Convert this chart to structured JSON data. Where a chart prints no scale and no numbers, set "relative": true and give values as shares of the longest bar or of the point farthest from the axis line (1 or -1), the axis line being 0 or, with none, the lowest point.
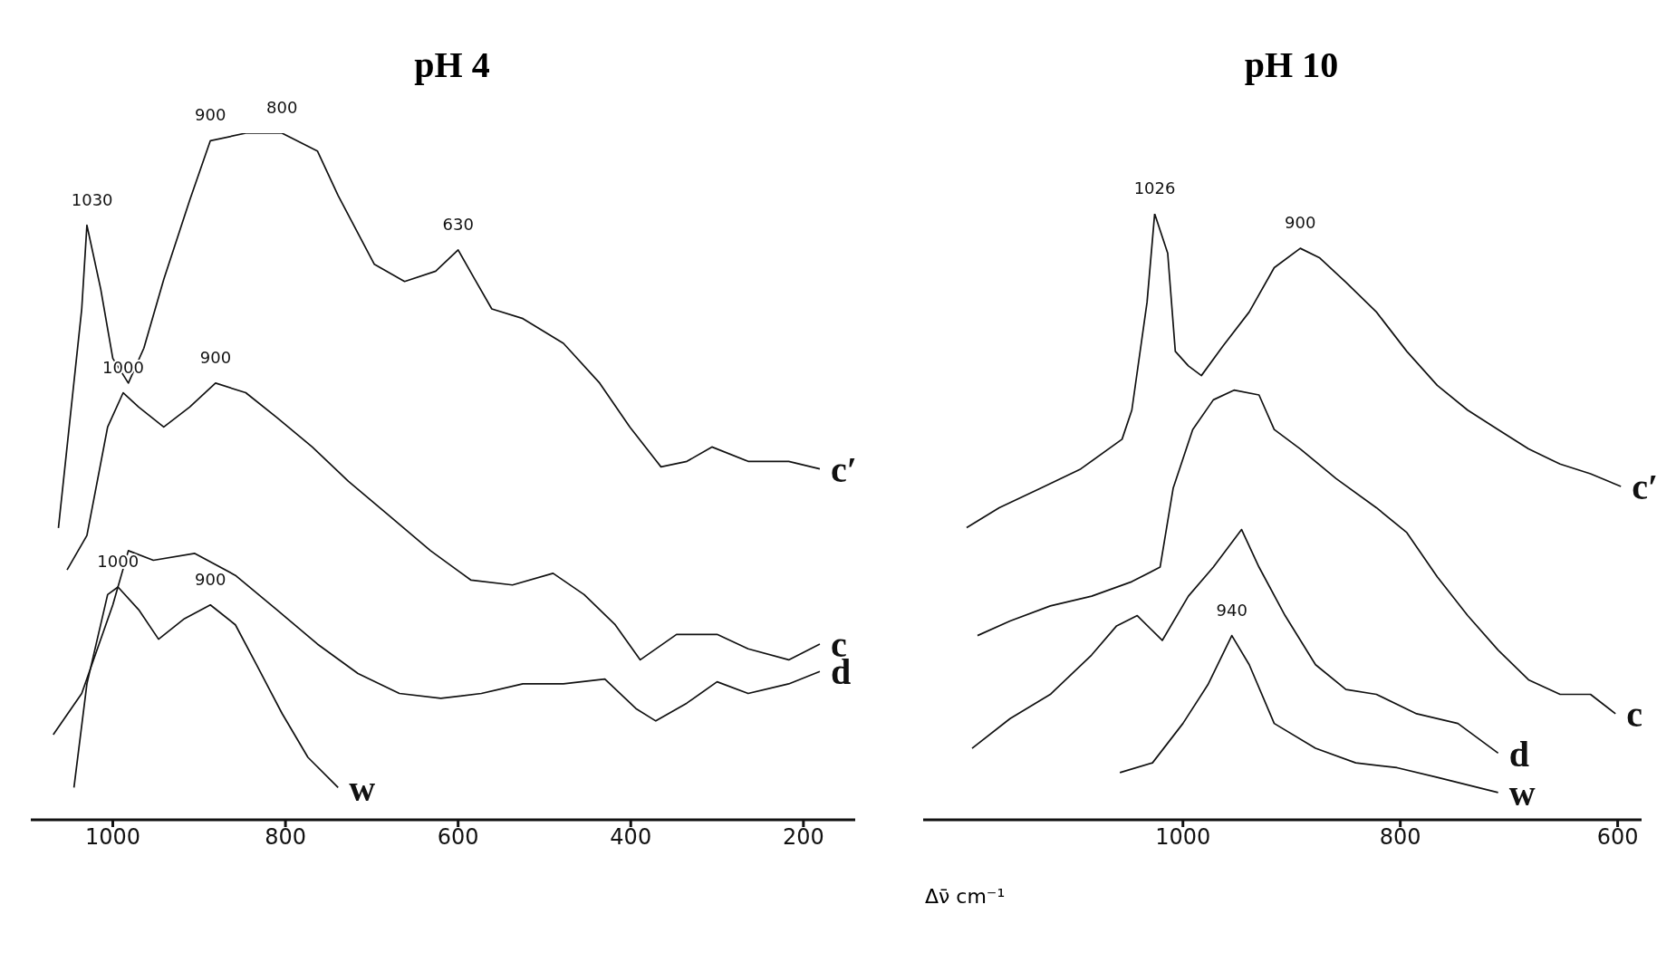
{
  "chart_data": [
    {
      "type": "line",
      "title": "pH 4",
      "relative": true,
      "xlim": [
        1095,
        140
      ],
      "xticks": [
        1000,
        800,
        600,
        400,
        200
      ],
      "series": [
        {
          "name": "c′",
          "color": "#111111",
          "x": [
            1063,
            1036,
            1030,
            1014,
            1000,
            982,
            964,
            941,
            911,
            887,
            846,
            804,
            763,
            739,
            697,
            662,
            626,
            600,
            582,
            561,
            525,
            478,
            436,
            401,
            365,
            335,
            306,
            264,
            217,
            181
          ],
          "values": [
            0.425,
            0.744,
            0.866,
            0.773,
            0.672,
            0.636,
            0.687,
            0.787,
            0.902,
            0.989,
            1,
            1,
            0.974,
            0.909,
            0.809,
            0.784,
            0.799,
            0.83,
            0.79,
            0.744,
            0.73,
            0.694,
            0.636,
            0.572,
            0.514,
            0.522,
            0.543,
            0.522,
            0.522,
            0.511
          ]
        },
        {
          "name": "c",
          "color": "#111111",
          "x": [
            1053,
            1030,
            1006,
            988,
            970,
            941,
            911,
            881,
            846,
            810,
            769,
            727,
            680,
            632,
            585,
            537,
            490,
            454,
            418,
            389,
            347,
            300,
            264,
            217,
            181
          ],
          "values": [
            0.364,
            0.414,
            0.572,
            0.622,
            0.601,
            0.572,
            0.601,
            0.636,
            0.622,
            0.586,
            0.543,
            0.493,
            0.443,
            0.392,
            0.349,
            0.342,
            0.359,
            0.328,
            0.284,
            0.233,
            0.27,
            0.27,
            0.249,
            0.233,
            0.256
          ]
        },
        {
          "name": "d",
          "color": "#111111",
          "x": [
            1069,
            1036,
            1000,
            982,
            953,
            905,
            858,
            810,
            763,
            716,
            668,
            620,
            573,
            525,
            478,
            430,
            394,
            371,
            335,
            300,
            264,
            217,
            181
          ],
          "values": [
            0.124,
            0.184,
            0.313,
            0.392,
            0.378,
            0.388,
            0.356,
            0.306,
            0.256,
            0.213,
            0.184,
            0.177,
            0.184,
            0.198,
            0.198,
            0.205,
            0.162,
            0.144,
            0.17,
            0.201,
            0.184,
            0.198,
            0.216
          ]
        },
        {
          "name": "w",
          "color": "#111111",
          "x": [
            1045,
            1030,
            1006,
            994,
            970,
            947,
            917,
            887,
            858,
            834,
            804,
            774,
            739
          ],
          "values": [
            0.047,
            0.198,
            0.328,
            0.339,
            0.306,
            0.263,
            0.293,
            0.313,
            0.284,
            0.227,
            0.155,
            0.091,
            0.047
          ]
        }
      ],
      "annotations": [
        {
          "text": "1030",
          "x": 1024,
          "y": 0.866
        },
        {
          "text": "900",
          "x": 887,
          "y": 0.989
        },
        {
          "text": "800",
          "x": 804,
          "y": 1
        },
        {
          "text": "630",
          "x": 600,
          "y": 0.83
        },
        {
          "text": "900",
          "x": 881,
          "y": 0.636
        },
        {
          "text": "1000",
          "x": 988,
          "y": 0.622
        },
        {
          "text": "1000",
          "x": 994,
          "y": 0.339
        },
        {
          "text": "900",
          "x": 887,
          "y": 0.313
        }
      ]
    },
    {
      "type": "line",
      "title": "pH 10",
      "xlabel": "Δν̄ cm⁻¹",
      "relative": true,
      "xlim": [
        1239,
        578
      ],
      "xticks": [
        1000,
        800,
        600
      ],
      "series": [
        {
          "name": "c′",
          "color": "#111111",
          "x": [
            1199,
            1169,
            1131,
            1094,
            1056,
            1047,
            1033,
            1026,
            1014,
            1007,
            995,
            983,
            963,
            939,
            916,
            892,
            874,
            850,
            822,
            794,
            766,
            738,
            710,
            682,
            653,
            625,
            597
          ],
          "values": [
            0.482,
            0.515,
            0.547,
            0.579,
            0.628,
            0.676,
            0.854,
            1,
            0.935,
            0.773,
            0.749,
            0.733,
            0.782,
            0.838,
            0.911,
            0.943,
            0.927,
            0.887,
            0.838,
            0.773,
            0.717,
            0.676,
            0.644,
            0.612,
            0.587,
            0.571,
            0.55
          ]
        },
        {
          "name": "c",
          "color": "#111111",
          "x": [
            1189,
            1159,
            1122,
            1084,
            1047,
            1021,
            1009,
            991,
            972,
            953,
            930,
            916,
            892,
            859,
            822,
            794,
            766,
            738,
            710,
            682,
            653,
            625,
            602
          ],
          "values": [
            0.304,
            0.328,
            0.353,
            0.369,
            0.393,
            0.417,
            0.547,
            0.644,
            0.693,
            0.709,
            0.701,
            0.644,
            0.612,
            0.563,
            0.515,
            0.474,
            0.401,
            0.337,
            0.28,
            0.231,
            0.207,
            0.207,
            0.175
          ]
        },
        {
          "name": "d",
          "color": "#111111",
          "x": [
            1194,
            1159,
            1122,
            1084,
            1061,
            1042,
            1019,
            995,
            972,
            946,
            930,
            906,
            878,
            850,
            822,
            785,
            747,
            710
          ],
          "values": [
            0.118,
            0.167,
            0.207,
            0.272,
            0.32,
            0.337,
            0.296,
            0.369,
            0.417,
            0.479,
            0.417,
            0.337,
            0.256,
            0.215,
            0.207,
            0.175,
            0.159,
            0.11
          ]
        },
        {
          "name": "w",
          "color": "#111111",
          "x": [
            1058,
            1028,
            1000,
            977,
            955,
            939,
            916,
            878,
            841,
            803,
            766,
            710
          ],
          "values": [
            0.078,
            0.094,
            0.159,
            0.223,
            0.304,
            0.256,
            0.159,
            0.118,
            0.094,
            0.086,
            0.07,
            0.045
          ]
        }
      ],
      "annotations": [
        {
          "text": "1026",
          "x": 1026,
          "y": 1
        },
        {
          "text": "900",
          "x": 892,
          "y": 0.943
        },
        {
          "text": "940",
          "x": 955,
          "y": 0.304
        }
      ]
    }
  ]
}
